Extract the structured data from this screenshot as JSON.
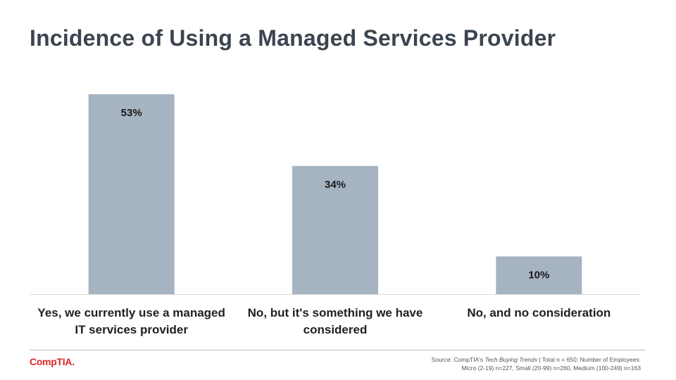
{
  "title": "Incidence of Using a Managed Services Provider",
  "chart_data": {
    "type": "bar",
    "title": "Incidence of Using a Managed Services Provider",
    "categories": [
      [
        "Yes, we currently use a managed",
        "IT services provider"
      ],
      [
        "No, but it's something we have",
        "considered"
      ],
      [
        "No, and no consideration"
      ]
    ],
    "values": [
      53,
      34,
      10
    ],
    "value_labels": [
      "53%",
      "34%",
      "10%"
    ],
    "ylim": [
      0,
      53
    ],
    "xlabel": "",
    "ylabel": "",
    "grid": false,
    "bar_color": "#a6b3c1"
  },
  "footer": {
    "logo": "CompTIA.",
    "source_line1_prefix": "Source: CompTIA's ",
    "source_line1_italic": "Tech Buying Trends",
    "source_line1_suffix": " | Total n = 650; Number of Employees:",
    "source_line2": "Micro (2-19) n=227, Small (20-99) n=260, Medium (100-249) n=163"
  }
}
